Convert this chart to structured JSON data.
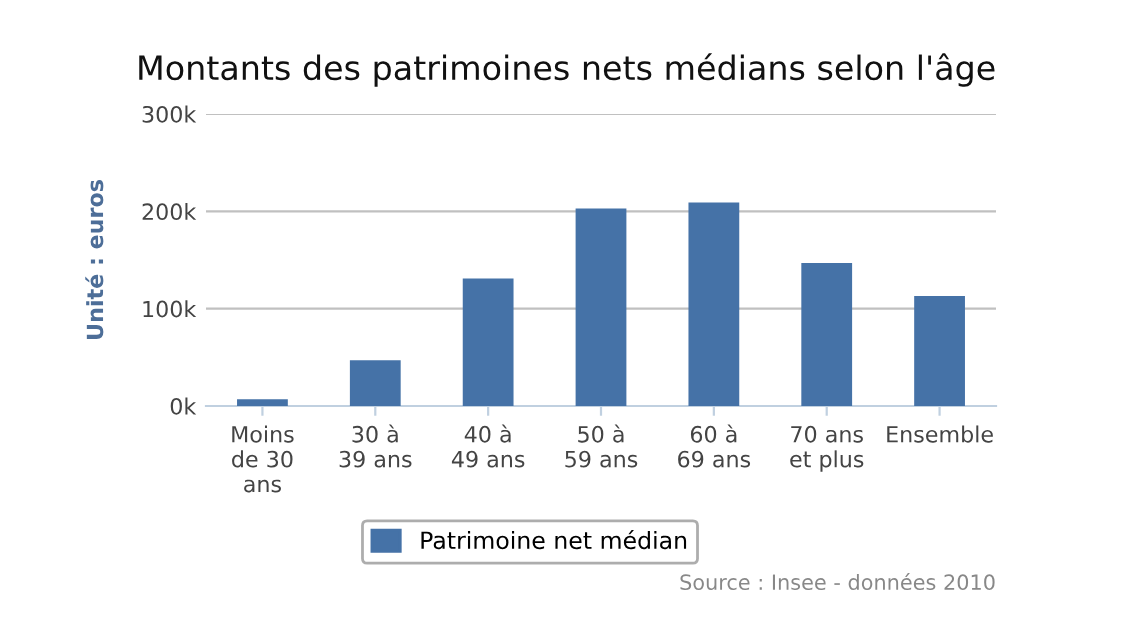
{
  "chart_data": {
    "type": "bar",
    "title": "Montants des patrimoines nets médians selon l'âge",
    "ylabel": "Unité : euros",
    "categories": [
      "Moins\nde 30\nans",
      "30 à\n39 ans",
      "40 à\n49 ans",
      "50 à\n59 ans",
      "60 à\n69 ans",
      "70 ans\net plus",
      "Ensemble"
    ],
    "series": [
      {
        "name": "Patrimoine net médian",
        "color": "#4572a7",
        "values": [
          7,
          47,
          131,
          203,
          209,
          147,
          113
        ]
      }
    ],
    "ylim": [
      0,
      300
    ],
    "yticks": [
      {
        "value": 0,
        "label": "0k"
      },
      {
        "value": 100,
        "label": "100k"
      },
      {
        "value": 200,
        "label": "200k"
      },
      {
        "value": 300,
        "label": "300k"
      }
    ],
    "grid": "y",
    "legend": "bottom",
    "annotations": [
      "Source : Insee - données 2010"
    ]
  }
}
